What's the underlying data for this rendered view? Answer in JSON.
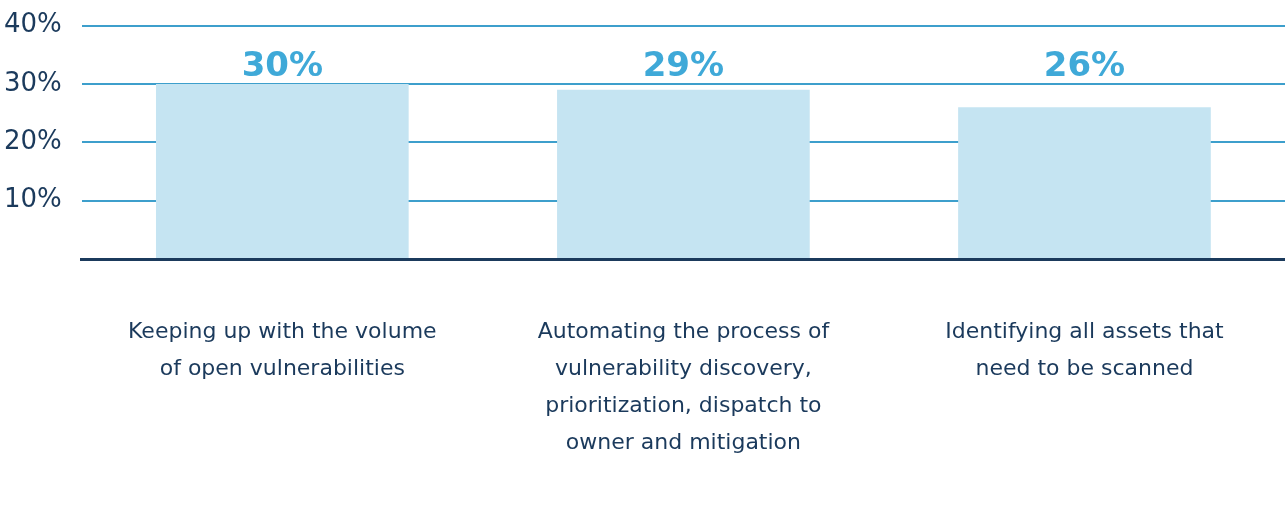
{
  "chart_data": {
    "type": "bar",
    "categories": [
      "Keeping up with the volume of open vulnerabilities",
      "Automating the process of vulnerability discovery, prioritization, dispatch to owner and mitigation",
      "Identifying all assets that need to be scanned"
    ],
    "values": [
      30,
      29,
      26
    ],
    "value_labels": [
      "30%",
      "29%",
      "26%"
    ],
    "color": "#c5e4f2",
    "ylim": [
      0,
      40
    ],
    "yticks": [
      {
        "value": 0,
        "label": null
      },
      {
        "value": 10,
        "label": "10%"
      },
      {
        "value": 20,
        "label": "20%"
      },
      {
        "value": 30,
        "label": "30%"
      },
      {
        "value": 40,
        "label": "40%"
      }
    ],
    "grid": "y",
    "legend": false
  }
}
